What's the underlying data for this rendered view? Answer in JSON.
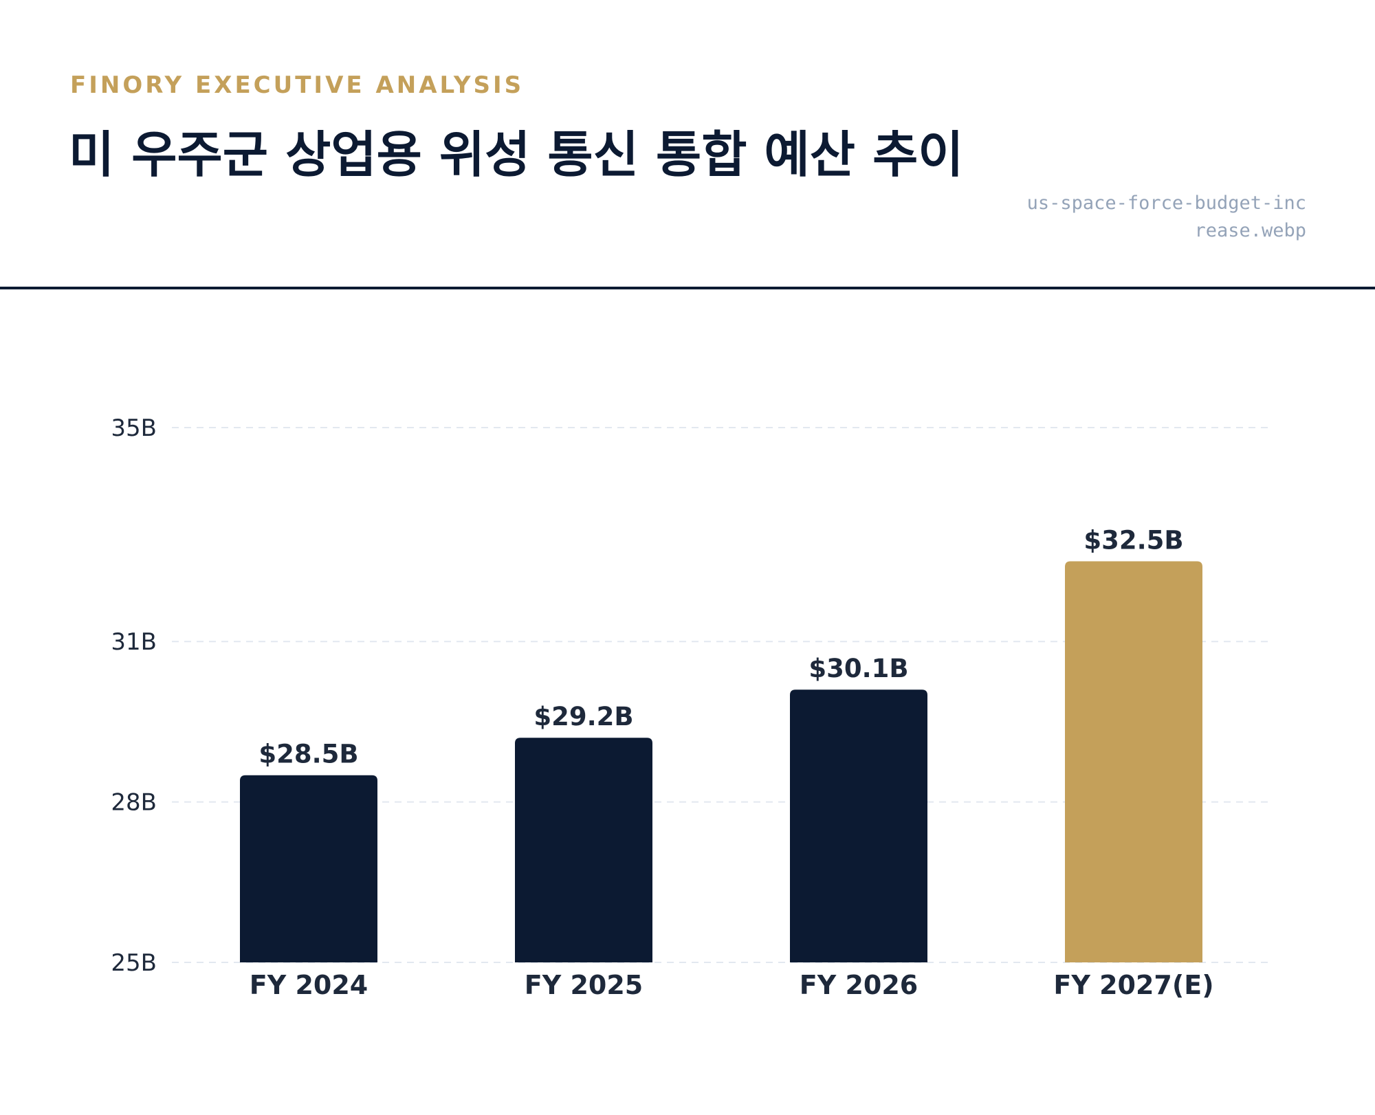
{
  "header": {
    "kicker": "FINORY EXECUTIVE ANALYSIS",
    "title": "미 우주군 상업용 위성 통신 통합 예산 추이",
    "filename": "us-space-force-budget-increase.webp"
  },
  "chart_data": {
    "type": "bar",
    "title": "미 우주군 상업용 위성 통신 통합 예산 추이",
    "categories": [
      "FY 2024",
      "FY 2025",
      "FY 2026",
      "FY 2027(E)"
    ],
    "values": [
      28.5,
      29.2,
      30.1,
      32.5
    ],
    "value_labels": [
      "$28.5B",
      "$29.2B",
      "$30.1B",
      "$32.5B"
    ],
    "unit": "B USD",
    "ylim": [
      25,
      35
    ],
    "yticks": [
      25,
      28,
      31,
      35
    ],
    "ytick_labels": [
      "25B",
      "28B",
      "31B",
      "35B"
    ],
    "grid": "horizontal dashed",
    "colors": {
      "actual": "#0C1A32",
      "estimate": "#C4A05A",
      "grid": "#E2E8F0"
    },
    "highlight_index": 3
  }
}
